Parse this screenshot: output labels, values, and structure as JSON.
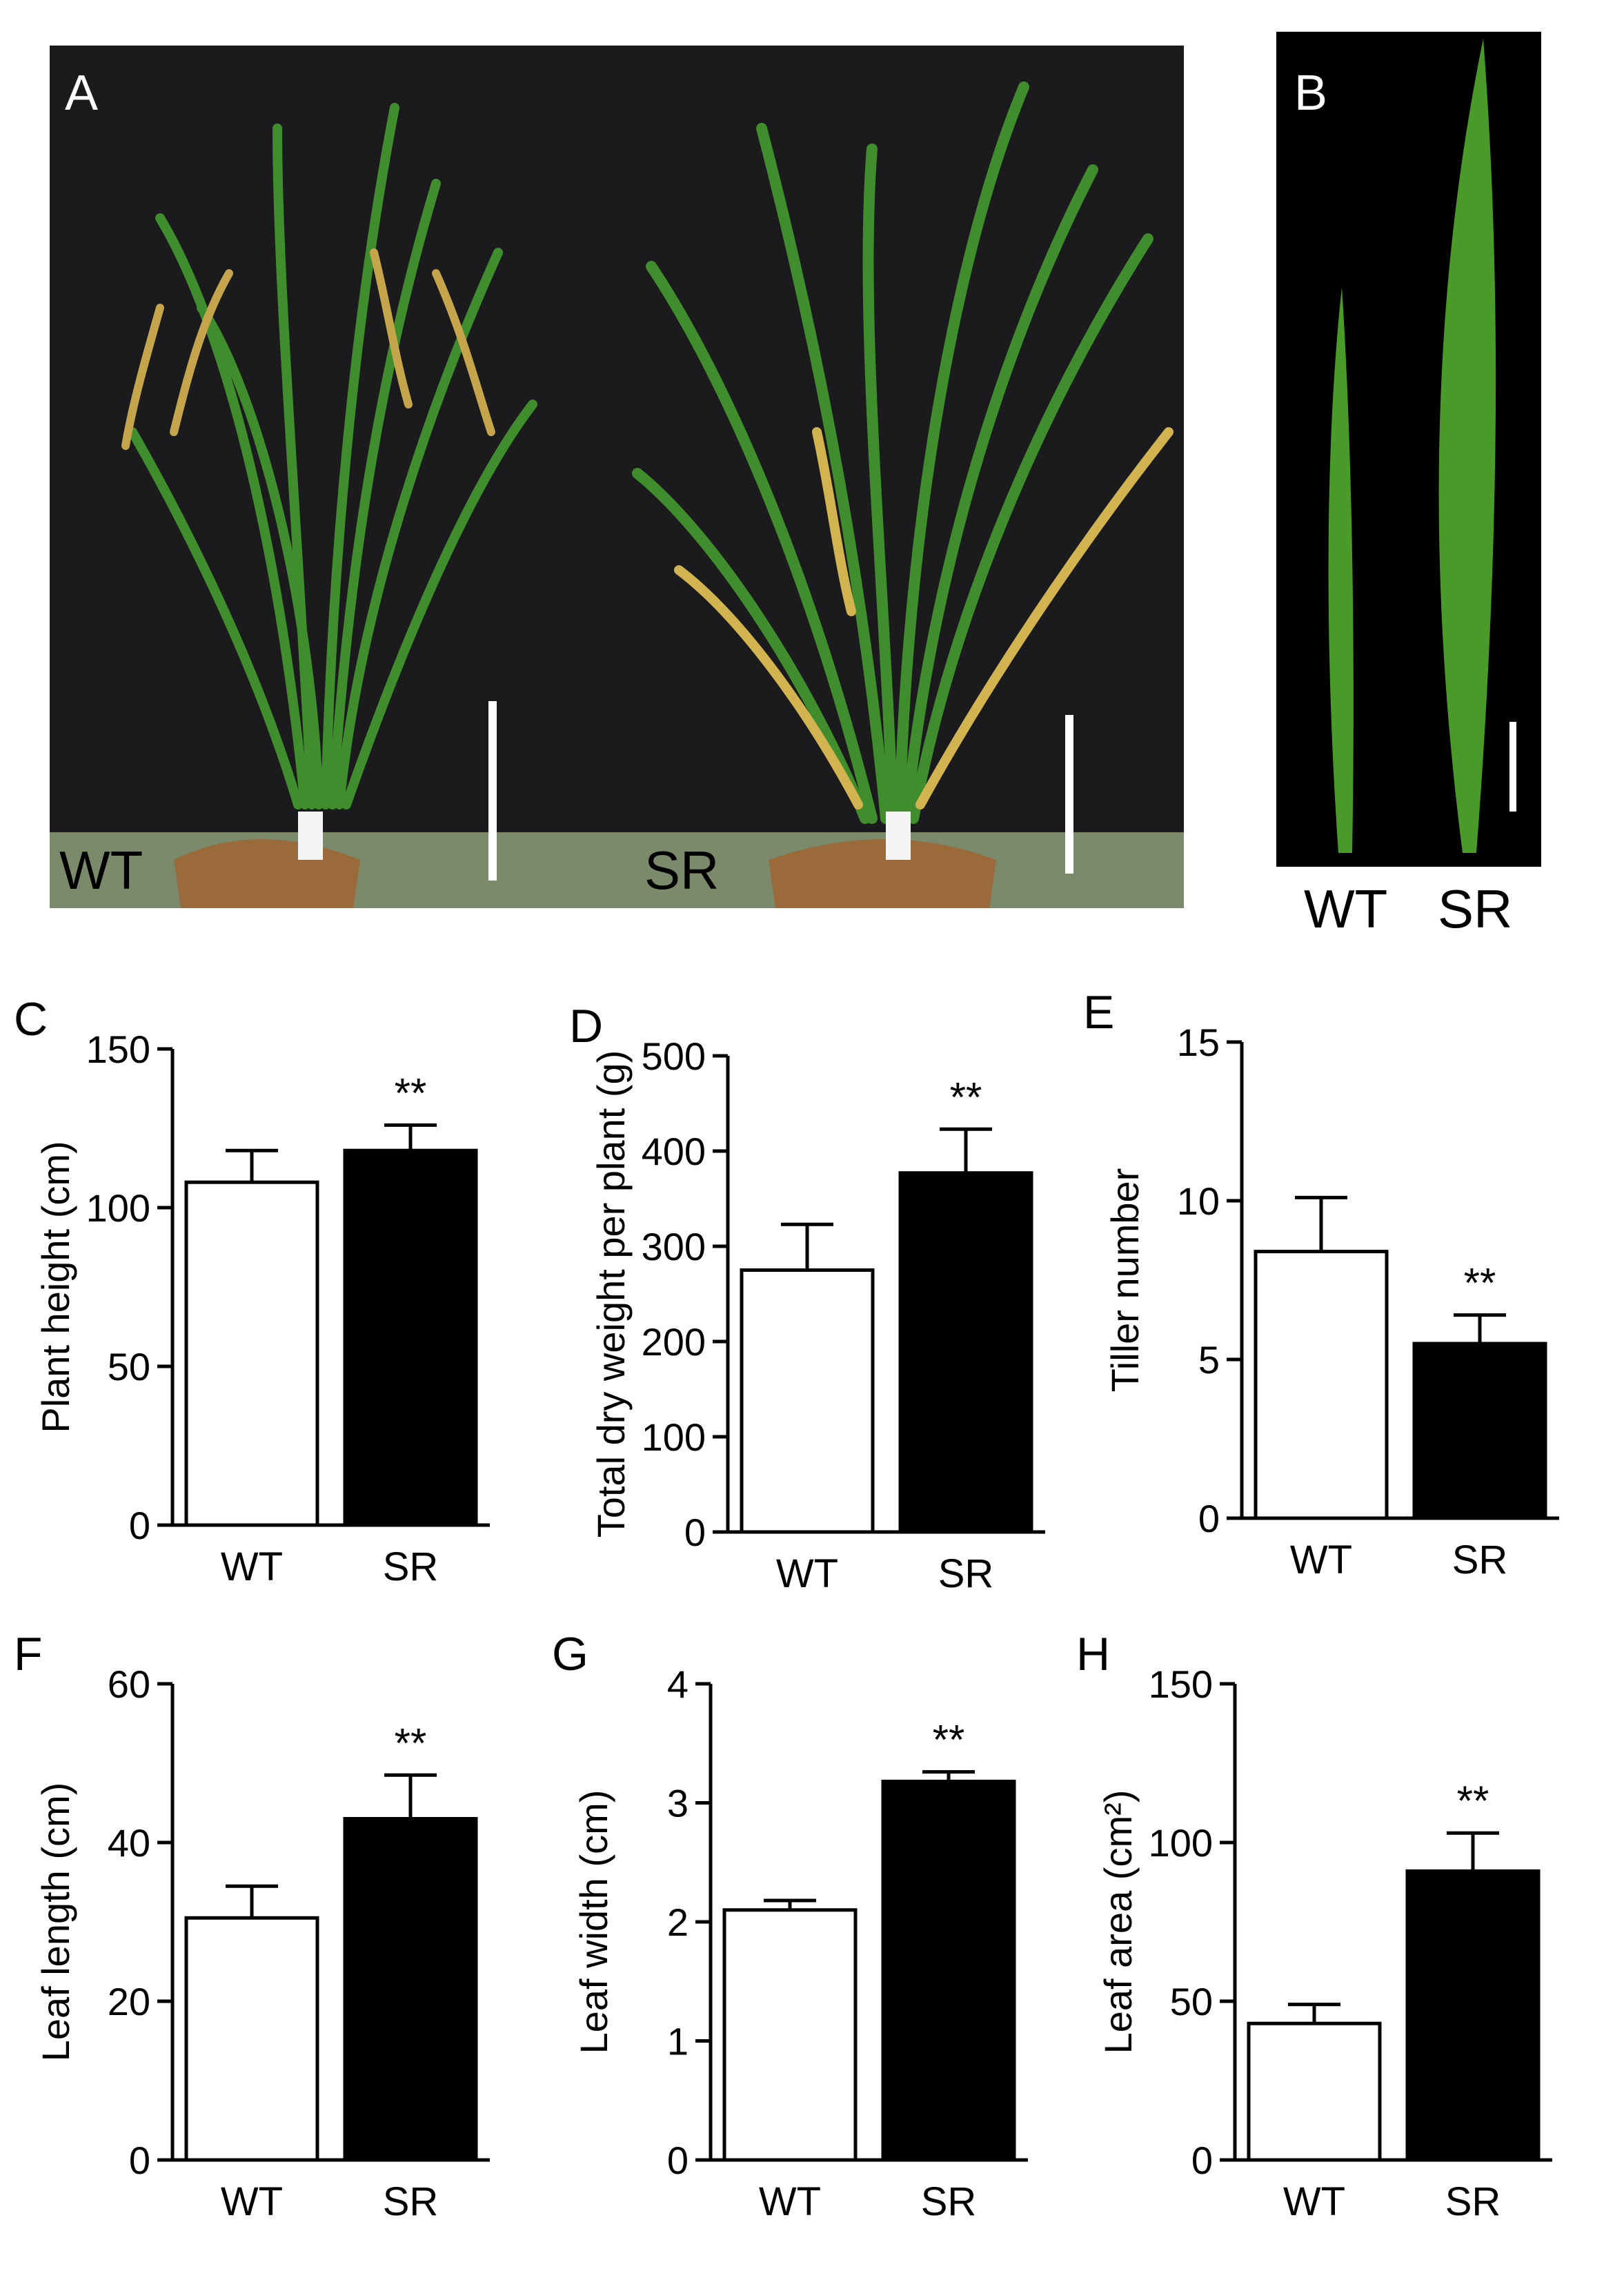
{
  "panels": {
    "a": {
      "letter": "A",
      "left_label": "WT",
      "right_label": "SR"
    },
    "b": {
      "letter": "B",
      "labels": [
        "WT",
        "SR"
      ]
    }
  },
  "colors": {
    "wt_bar": "#ffffff",
    "sr_bar": "#000000",
    "leaf_green": "#4a9a2a",
    "photo_bg": "#1b1b1d"
  },
  "chart_data": [
    {
      "letter": "C",
      "type": "bar",
      "categories": [
        "WT",
        "SR"
      ],
      "values": [
        108,
        118
      ],
      "errors": [
        10,
        8
      ],
      "ylabel": "Plant height (cm)",
      "ylim": [
        0,
        150
      ],
      "yticks": [
        "0",
        "50",
        "100",
        "150"
      ],
      "significance": [
        "",
        "**"
      ]
    },
    {
      "letter": "D",
      "type": "bar",
      "categories": [
        "WT",
        "SR"
      ],
      "values": [
        275,
        377
      ],
      "errors": [
        48,
        46
      ],
      "ylabel": "Total dry weight per plant (g)",
      "ylim": [
        0,
        500
      ],
      "yticks": [
        "0",
        "100",
        "200",
        "300",
        "400",
        "500"
      ],
      "significance": [
        "",
        "**"
      ]
    },
    {
      "letter": "E",
      "type": "bar",
      "categories": [
        "WT",
        "SR"
      ],
      "values": [
        8.4,
        5.5
      ],
      "errors": [
        1.7,
        0.9
      ],
      "ylabel": "Tiller number",
      "ylim": [
        0,
        15
      ],
      "yticks": [
        "0",
        "5",
        "10",
        "15"
      ],
      "significance": [
        "",
        "**"
      ]
    },
    {
      "letter": "F",
      "type": "bar",
      "categories": [
        "WT",
        "SR"
      ],
      "values": [
        30.5,
        43
      ],
      "errors": [
        4,
        5.5
      ],
      "ylabel": "Leaf length (cm)",
      "ylim": [
        0,
        60
      ],
      "yticks": [
        "0",
        "20",
        "40",
        "60"
      ],
      "significance": [
        "",
        "**"
      ]
    },
    {
      "letter": "G",
      "type": "bar",
      "categories": [
        "WT",
        "SR"
      ],
      "values": [
        2.1,
        3.18
      ],
      "errors": [
        0.08,
        0.08
      ],
      "ylabel": "Leaf width (cm)",
      "ylim": [
        0,
        4
      ],
      "yticks": [
        "0",
        "1",
        "2",
        "3",
        "4"
      ],
      "significance": [
        "",
        "**"
      ]
    },
    {
      "letter": "H",
      "type": "bar",
      "categories": [
        "WT",
        "SR"
      ],
      "values": [
        43,
        91
      ],
      "errors": [
        6,
        12
      ],
      "ylabel": "Leaf area (cm²)",
      "ylim": [
        0,
        150
      ],
      "yticks": [
        "0",
        "50",
        "100",
        "150"
      ],
      "significance": [
        "",
        "**"
      ]
    }
  ]
}
